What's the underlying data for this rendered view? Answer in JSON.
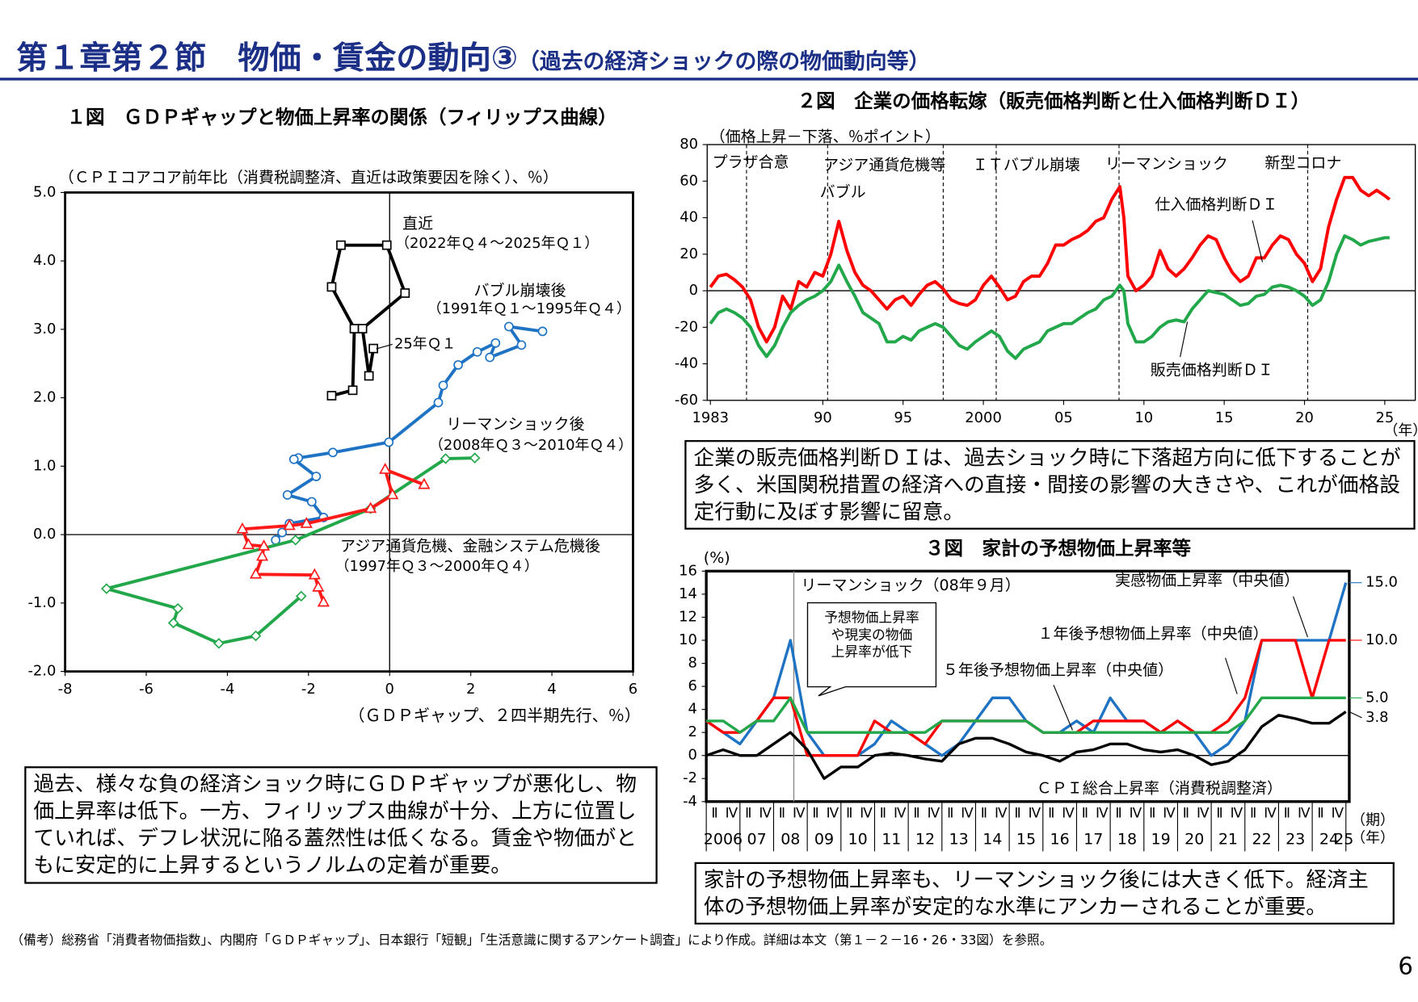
{
  "header": {
    "title": "第１章第２節　物価・賃金の動向③",
    "subtitle": "（過去の経済ショックの際の物価動向等）"
  },
  "chart_data": [
    {
      "type": "line",
      "title": "１図　ＧＤＰギャップと物価上昇率の関係（フィリップス曲線）",
      "y_label": "（ＣＰＩコアコア前年比（消費税調整済、直近は政策要因を除く）、％）",
      "x_label": "（ＧＤＰギャップ、２四半期先行、％）",
      "xlim": [
        -8,
        6
      ],
      "xticks": [
        -8,
        -6,
        -4,
        -2,
        0,
        2,
        4,
        6
      ],
      "ylim": [
        -2,
        5
      ],
      "yticks": [
        {
          "value": 5,
          "label": "5.0"
        },
        {
          "value": 4,
          "label": "4.0"
        },
        {
          "value": 3,
          "label": "3.0"
        },
        {
          "value": 2,
          "label": "2.0"
        },
        {
          "value": 1,
          "label": "1.0"
        },
        {
          "value": 0,
          "label": "0.0"
        },
        {
          "value": -1,
          "label": "-1.0"
        },
        {
          "value": -2,
          "label": "-2.0"
        }
      ],
      "zero_line": true,
      "zero_line_x": true,
      "series": [
        {
          "name": "直近",
          "period": "（2022年Ｑ４～2025年Ｑ１）",
          "color": "#000000",
          "marker": "square",
          "x": [
            -1.43,
            -0.91,
            -0.87,
            -1.43,
            -1.2,
            -0.07,
            0.38,
            -0.67,
            -0.51,
            -0.4
          ],
          "values": [
            2.03,
            2.11,
            3.01,
            3.62,
            4.23,
            4.23,
            3.53,
            3.01,
            2.32,
            2.72
          ]
        },
        {
          "name": "バブル崩壊後",
          "period": "（1991年Ｑ１～1995年Ｑ４）",
          "color": "#1f73c4",
          "marker": "circle",
          "x": [
            3.77,
            2.94,
            3.25,
            2.47,
            2.61,
            2.16,
            1.69,
            1.32,
            1.2,
            -0.02,
            -1.4,
            -2.25,
            -2.36,
            -1.81,
            -2.52,
            -1.92,
            -1.63,
            -2.47,
            -2.81,
            -2.65
          ],
          "values": [
            2.97,
            3.04,
            2.77,
            2.59,
            2.8,
            2.67,
            2.48,
            2.18,
            1.93,
            1.35,
            1.2,
            1.12,
            1.1,
            0.85,
            0.58,
            0.48,
            0.25,
            0.16,
            -0.08,
            0.03
          ]
        },
        {
          "name": "リーマンショック後",
          "period": "（2008年Ｑ３～2010年Ｑ４）",
          "color": "#22a84a",
          "marker": "diamond",
          "x": [
            2.1,
            1.38,
            -0.47,
            -2.32,
            -6.98,
            -5.22,
            -5.33,
            -4.21,
            -3.3,
            -2.18
          ],
          "values": [
            1.12,
            1.11,
            0.38,
            -0.08,
            -0.79,
            -1.08,
            -1.29,
            -1.59,
            -1.48,
            -0.9
          ]
        },
        {
          "name": "アジア通貨危機、金融システム危機後",
          "period": "（1997年Ｑ３～2000年Ｑ４）",
          "color": "#ff1a1a",
          "marker": "triangle",
          "x": [
            0.85,
            -0.11,
            0.07,
            -0.47,
            -2.05,
            -2.47,
            -3.63,
            -3.48,
            -3.1,
            -3.14,
            -3.3,
            -1.85,
            -1.76,
            -1.63
          ],
          "values": [
            0.73,
            0.95,
            0.58,
            0.38,
            0.16,
            0.13,
            0.08,
            -0.15,
            -0.17,
            -0.32,
            -0.58,
            -0.59,
            -0.77,
            -0.99
          ]
        }
      ],
      "annotations": [
        "25年Ｑ１"
      ]
    },
    {
      "type": "line",
      "title": "２図　企業の価格転嫁（販売価格判断と仕入価格判断ＤＩ）",
      "y_label": "（価格上昇－下落、％ポイント）",
      "x_units": [
        "（年）"
      ],
      "xlim": [
        1982.8,
        2026.9
      ],
      "xticks": [
        1983,
        {
          "value": 1990,
          "label": "90"
        },
        {
          "value": 1995,
          "label": "95"
        },
        2000,
        {
          "value": 2005,
          "label": "05"
        },
        {
          "value": 2010,
          "label": "10"
        },
        {
          "value": 2015,
          "label": "15"
        },
        {
          "value": 2020,
          "label": "20"
        },
        {
          "value": 2025,
          "label": "25"
        }
      ],
      "ylim": [
        -60,
        80
      ],
      "yticks": [
        80,
        60,
        40,
        20,
        0,
        -20,
        -40,
        -60
      ],
      "zero_line": true,
      "events": [
        {
          "x": 1985.25,
          "label": "プラザ合意"
        },
        {
          "x": 1990.3,
          "label": "バブル"
        },
        {
          "x": 1997.5,
          "label": "アジア通貨危機等"
        },
        {
          "x": 2000.8,
          "label": "ＩＴバブル崩壊"
        },
        {
          "x": 2008.45,
          "label": "リーマンショック"
        },
        {
          "x": 2020.2,
          "label": "新型コロナ"
        }
      ],
      "x": [
        1983,
        1983.5,
        1984,
        1984.5,
        1985,
        1985.5,
        1986,
        1986.5,
        1987,
        1987.5,
        1988,
        1988.5,
        1989,
        1989.5,
        1990,
        1990.5,
        1991,
        1991.5,
        1992,
        1992.5,
        1993,
        1993.5,
        1994,
        1994.5,
        1995,
        1995.5,
        1996,
        1996.5,
        1997,
        1997.5,
        1998,
        1998.5,
        1999,
        1999.5,
        2000,
        2000.5,
        2001,
        2001.5,
        2002,
        2002.5,
        2003,
        2003.5,
        2004,
        2004.5,
        2005,
        2005.5,
        2006,
        2006.5,
        2007,
        2007.5,
        2008,
        2008.5,
        2008.75,
        2009,
        2009.5,
        2010,
        2010.5,
        2011,
        2011.5,
        2012,
        2012.5,
        2013,
        2013.5,
        2014,
        2014.5,
        2015,
        2015.5,
        2016,
        2016.5,
        2017,
        2017.5,
        2018,
        2018.5,
        2019,
        2019.5,
        2020,
        2020.5,
        2021,
        2021.5,
        2022,
        2022.5,
        2023,
        2023.5,
        2024,
        2024.5,
        2025,
        2025.3
      ],
      "series": [
        {
          "name": "仕入価格判断ＤＩ",
          "color": "#ff0000",
          "values": [
            2,
            8,
            9,
            6,
            2,
            -5,
            -20,
            -28,
            -20,
            -3,
            -10,
            5,
            2,
            10,
            8,
            20,
            38,
            22,
            10,
            3,
            0,
            -5,
            -10,
            -5,
            -3,
            -8,
            -2,
            3,
            5,
            1,
            -5,
            -7,
            -8,
            -5,
            3,
            8,
            2,
            -5,
            -3,
            5,
            8,
            8,
            15,
            25,
            25,
            28,
            30,
            33,
            38,
            40,
            50,
            57,
            40,
            8,
            0,
            3,
            8,
            22,
            12,
            8,
            12,
            18,
            25,
            30,
            28,
            18,
            10,
            5,
            8,
            18,
            18,
            25,
            30,
            28,
            20,
            15,
            5,
            12,
            35,
            50,
            62,
            62,
            55,
            52,
            55,
            52,
            50
          ]
        },
        {
          "name": "販売価格判断ＤＩ",
          "color": "#22a84a",
          "values": [
            -18,
            -12,
            -10,
            -12,
            -15,
            -20,
            -30,
            -36,
            -30,
            -20,
            -12,
            -8,
            -5,
            -3,
            0,
            5,
            14,
            5,
            -3,
            -12,
            -15,
            -18,
            -28,
            -28,
            -25,
            -27,
            -22,
            -20,
            -18,
            -20,
            -25,
            -30,
            -32,
            -28,
            -25,
            -22,
            -25,
            -33,
            -37,
            -32,
            -30,
            -28,
            -22,
            -20,
            -18,
            -18,
            -15,
            -12,
            -10,
            -5,
            -3,
            3,
            0,
            -18,
            -28,
            -28,
            -25,
            -20,
            -17,
            -16,
            -17,
            -10,
            -5,
            0,
            -1,
            -2,
            -5,
            -8,
            -7,
            -3,
            -2,
            2,
            3,
            2,
            0,
            -3,
            -8,
            -5,
            5,
            20,
            30,
            28,
            25,
            27,
            28,
            29,
            29
          ]
        }
      ]
    },
    {
      "type": "line",
      "title": "３図　家計の予想物価上昇率等",
      "y_label": "(%)",
      "x_units": [
        "（期）",
        "（年）"
      ],
      "quarter_labels": [
        "Ⅱ",
        "Ⅳ"
      ],
      "xlim": [
        2006,
        2025.1
      ],
      "xticks": [
        {
          "value": 2006,
          "label": "2006"
        },
        {
          "value": 2007,
          "label": "07"
        },
        {
          "value": 2008,
          "label": "08"
        },
        {
          "value": 2009,
          "label": "09"
        },
        {
          "value": 2010,
          "label": "10"
        },
        {
          "value": 2011,
          "label": "11"
        },
        {
          "value": 2012,
          "label": "12"
        },
        {
          "value": 2013,
          "label": "13"
        },
        {
          "value": 2014,
          "label": "14"
        },
        {
          "value": 2015,
          "label": "15"
        },
        {
          "value": 2016,
          "label": "16"
        },
        {
          "value": 2017,
          "label": "17"
        },
        {
          "value": 2018,
          "label": "18"
        },
        {
          "value": 2019,
          "label": "19"
        },
        {
          "value": 2020,
          "label": "20"
        },
        {
          "value": 2021,
          "label": "21"
        },
        {
          "value": 2022,
          "label": "22"
        },
        {
          "value": 2023,
          "label": "23"
        },
        {
          "value": 2024,
          "label": "24"
        },
        {
          "value": 2025,
          "label": "25"
        }
      ],
      "ylim": [
        -4,
        16
      ],
      "yticks": [
        16,
        14,
        12,
        10,
        8,
        6,
        4,
        2,
        0,
        -2,
        -4
      ],
      "zero_line": true,
      "event": {
        "x": 2008.6,
        "label": "リーマンショック（08年９月）"
      },
      "callout": [
        "予想物価上昇率",
        "や現実の物価",
        "上昇率が低下"
      ],
      "x": [
        2006,
        2006.5,
        2007,
        2007.5,
        2008,
        2008.5,
        2009,
        2009.5,
        2010,
        2010.5,
        2011,
        2011.5,
        2012,
        2012.5,
        2013,
        2013.5,
        2014,
        2014.5,
        2015,
        2015.5,
        2016,
        2016.5,
        2017,
        2017.5,
        2018,
        2018.5,
        2019,
        2019.5,
        2020,
        2020.5,
        2021,
        2021.5,
        2022,
        2022.5,
        2023,
        2023.5,
        2024,
        2024.5,
        2025
      ],
      "series": [
        {
          "name": "実感物価上昇率（中央値）",
          "color": "#1f73c4",
          "end_label": "15.0",
          "values": [
            3,
            2,
            1,
            3,
            5,
            10,
            2,
            0,
            0,
            0,
            1,
            3,
            2,
            1,
            0,
            1,
            3,
            5,
            5,
            3,
            2,
            2,
            3,
            2,
            5,
            3,
            3,
            2,
            3,
            2,
            0,
            1,
            3,
            10,
            10,
            10,
            10,
            10,
            15
          ]
        },
        {
          "name": "１年後予想物価上昇率（中央値）",
          "color": "#ff0000",
          "end_label": "10.0",
          "values": [
            3,
            2,
            2,
            3,
            5,
            5,
            0,
            0,
            0,
            0,
            3,
            2,
            2,
            1,
            3,
            3,
            3,
            3,
            3,
            3,
            2,
            2,
            2,
            3,
            3,
            3,
            3,
            2,
            3,
            2,
            2,
            3,
            5,
            10,
            10,
            10,
            5,
            10,
            10
          ]
        },
        {
          "name": "５年後予想物価上昇率（中央値）",
          "color": "#22a84a",
          "end_label": "5.0",
          "values": [
            3,
            3,
            2,
            3,
            3,
            5,
            2,
            2,
            2,
            2,
            2,
            2,
            2,
            2,
            3,
            3,
            3,
            3,
            3,
            3,
            2,
            2,
            2,
            2,
            2,
            2,
            2,
            2,
            2,
            2,
            2,
            2,
            3,
            5,
            5,
            5,
            5,
            5,
            5
          ]
        },
        {
          "name": "ＣＰＩ総合上昇率（消費税調整済）",
          "color": "#000000",
          "end_label": "3.8",
          "values": [
            0,
            0.5,
            0,
            0,
            1,
            2,
            0.5,
            -2,
            -1,
            -1,
            0,
            0.2,
            0,
            -0.3,
            -0.5,
            1,
            1.5,
            1.5,
            1,
            0.3,
            0,
            -0.5,
            0.3,
            0.5,
            1,
            1,
            0.5,
            0.3,
            0.5,
            0,
            -0.8,
            -0.5,
            0.5,
            2.5,
            3.5,
            3.2,
            2.8,
            2.8,
            3.8
          ]
        }
      ]
    }
  ],
  "notes": [
    "過去、様々な負の経済ショック時にＧＤＰギャップが悪化し、物価上昇率は低下。一方、フィリップス曲線が十分、上方に位置していれば、デフレ状況に陥る蓋然性は低くなる。賃金や物価がともに安定的に上昇するというノルムの定着が重要。",
    "企業の販売価格判断ＤＩは、過去ショック時に下落超方向に低下することが多く、米国関税措置の経済への直接・間接の影響の大きさや、これが価格設定行動に及ぼす影響に留意。",
    "家計の予想物価上昇率も、リーマンショック後には大きく低下。経済主体の予想物価上昇率が安定的な水準にアンカーされることが重要。"
  ],
  "footnote": "（備考）総務省「消費者物価指数」、内閣府「ＧＤＰギャップ」、日本銀行「短観」「生活意識に関するアンケート調査」により作成。詳細は本文（第１－２－16・26・33図）を参照。",
  "page_number": "6"
}
